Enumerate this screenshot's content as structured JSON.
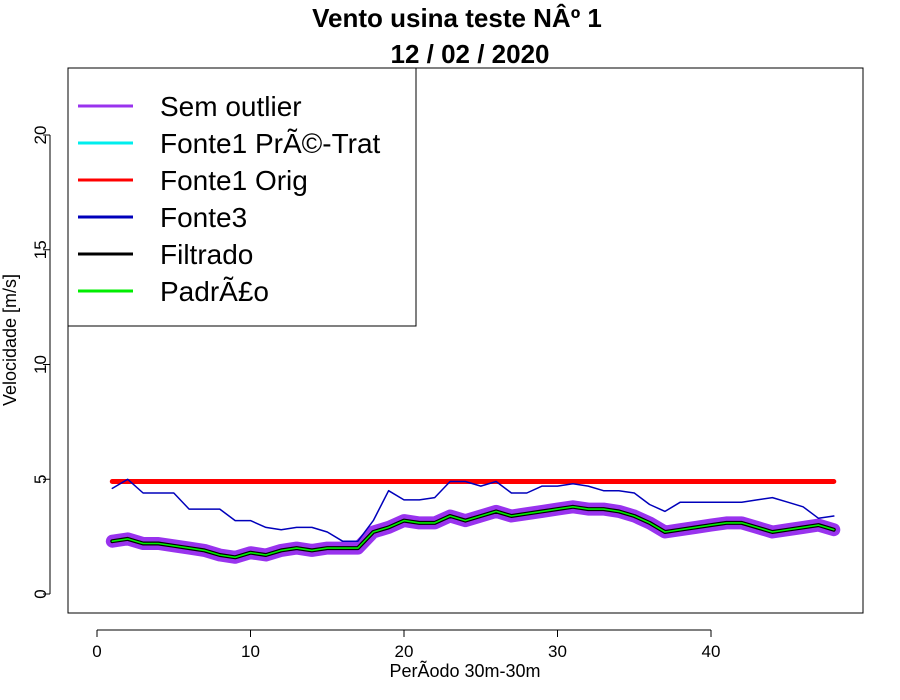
{
  "chart_data": {
    "type": "line",
    "title": "Vento usina teste NÂº 1",
    "subtitle": "12 / 02 / 2020",
    "xlabel": "PerÃ­odo 30m-30m",
    "ylabel": "Velocidade [m/s]",
    "xlim": [
      1,
      48
    ],
    "ylim": [
      0,
      22
    ],
    "x_ticks": [
      0,
      10,
      20,
      30,
      40
    ],
    "y_ticks": [
      0,
      5,
      10,
      15,
      20
    ],
    "x": [
      1,
      2,
      3,
      4,
      5,
      6,
      7,
      8,
      9,
      10,
      11,
      12,
      13,
      14,
      15,
      16,
      17,
      18,
      19,
      20,
      21,
      22,
      23,
      24,
      25,
      26,
      27,
      28,
      29,
      30,
      31,
      32,
      33,
      34,
      35,
      36,
      37,
      38,
      39,
      40,
      41,
      42,
      43,
      44,
      45,
      46,
      47,
      48
    ],
    "legend_position": "top-left",
    "series": [
      {
        "name": "Sem outlier",
        "color": "#9933ee",
        "values": [
          2.3,
          2.4,
          2.2,
          2.2,
          2.1,
          2.0,
          1.9,
          1.7,
          1.6,
          1.8,
          1.7,
          1.9,
          2.0,
          1.9,
          2.0,
          2.0,
          2.0,
          2.7,
          2.9,
          3.2,
          3.1,
          3.1,
          3.4,
          3.2,
          3.4,
          3.6,
          3.4,
          3.5,
          3.6,
          3.7,
          3.8,
          3.7,
          3.7,
          3.6,
          3.4,
          3.1,
          2.7,
          2.8,
          2.9,
          3.0,
          3.1,
          3.1,
          2.9,
          2.7,
          2.8,
          2.9,
          3.0,
          2.8
        ]
      },
      {
        "name": "Fonte1 PrÃ©-Trat",
        "color": "#00eeee",
        "values": [
          4.9,
          4.9,
          4.9,
          4.9,
          4.9,
          4.9,
          4.9,
          4.9,
          4.9,
          4.9,
          4.9,
          4.9,
          4.9,
          4.9,
          4.9,
          4.9,
          4.9,
          4.9,
          4.9,
          4.9,
          4.9,
          4.9,
          4.9,
          4.9,
          4.9,
          4.9,
          4.9,
          4.9,
          4.9,
          4.9,
          4.9,
          4.9,
          4.9,
          4.9,
          4.9,
          4.9,
          4.9,
          4.9,
          4.9,
          4.9,
          4.9,
          4.9,
          4.9,
          4.9,
          4.9,
          4.9,
          4.9,
          4.9
        ]
      },
      {
        "name": "Fonte1 Orig",
        "color": "#ff0000",
        "values": [
          4.9,
          4.9,
          4.9,
          4.9,
          4.9,
          4.9,
          4.9,
          4.9,
          4.9,
          4.9,
          4.9,
          4.9,
          4.9,
          4.9,
          4.9,
          4.9,
          4.9,
          4.9,
          4.9,
          4.9,
          4.9,
          4.9,
          4.9,
          4.9,
          4.9,
          4.9,
          4.9,
          4.9,
          4.9,
          4.9,
          4.9,
          4.9,
          4.9,
          4.9,
          4.9,
          4.9,
          4.9,
          4.9,
          4.9,
          4.9,
          4.9,
          4.9,
          4.9,
          4.9,
          4.9,
          4.9,
          4.9,
          4.9
        ]
      },
      {
        "name": "Fonte3",
        "color": "#0000bb",
        "values": [
          4.6,
          5.0,
          4.4,
          4.4,
          4.4,
          3.7,
          3.7,
          3.7,
          3.2,
          3.2,
          2.9,
          2.8,
          2.9,
          2.9,
          2.7,
          2.3,
          2.3,
          3.2,
          4.5,
          4.1,
          4.1,
          4.2,
          4.9,
          4.9,
          4.7,
          4.9,
          4.4,
          4.4,
          4.7,
          4.7,
          4.8,
          4.7,
          4.5,
          4.5,
          4.4,
          3.9,
          3.6,
          4.0,
          4.0,
          4.0,
          4.0,
          4.0,
          4.1,
          4.2,
          4.0,
          3.8,
          3.3,
          3.4
        ]
      },
      {
        "name": "Filtrado",
        "color": "#000000",
        "values": [
          2.3,
          2.4,
          2.2,
          2.2,
          2.1,
          2.0,
          1.9,
          1.7,
          1.6,
          1.8,
          1.7,
          1.9,
          2.0,
          1.9,
          2.0,
          2.0,
          2.0,
          2.7,
          2.9,
          3.2,
          3.1,
          3.1,
          3.4,
          3.2,
          3.4,
          3.6,
          3.4,
          3.5,
          3.6,
          3.7,
          3.8,
          3.7,
          3.7,
          3.6,
          3.4,
          3.1,
          2.7,
          2.8,
          2.9,
          3.0,
          3.1,
          3.1,
          2.9,
          2.7,
          2.8,
          2.9,
          3.0,
          2.8
        ]
      },
      {
        "name": "PadrÃ£o",
        "color": "#00ee00",
        "values": [
          2.3,
          2.4,
          2.2,
          2.2,
          2.1,
          2.0,
          1.9,
          1.7,
          1.6,
          1.8,
          1.7,
          1.9,
          2.0,
          1.9,
          2.0,
          2.0,
          2.0,
          2.7,
          2.9,
          3.2,
          3.1,
          3.1,
          3.4,
          3.2,
          3.4,
          3.6,
          3.4,
          3.5,
          3.6,
          3.7,
          3.8,
          3.7,
          3.7,
          3.6,
          3.4,
          3.1,
          2.7,
          2.8,
          2.9,
          3.0,
          3.1,
          3.1,
          2.9,
          2.7,
          2.8,
          2.9,
          3.0,
          2.8
        ]
      }
    ]
  }
}
